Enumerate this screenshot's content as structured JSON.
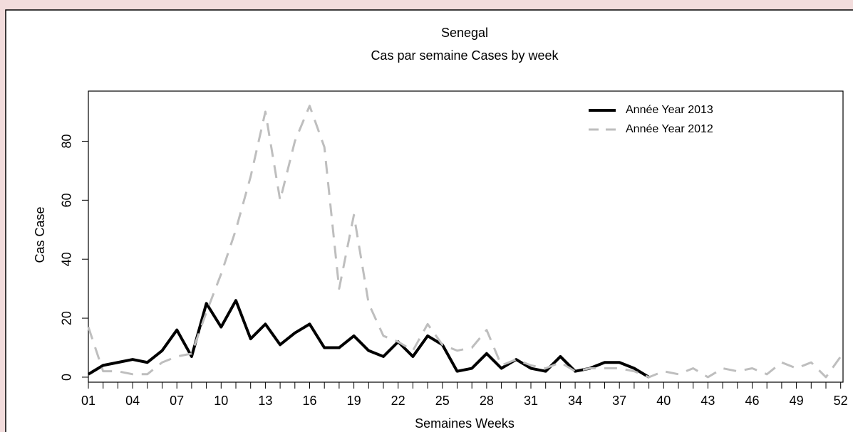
{
  "chart_data": {
    "type": "line",
    "title": "Senegal",
    "subtitle": "Cas par semaine Cases by week",
    "x_label": "Semaines Weeks",
    "y_label": "Cas Case",
    "categories": [
      "01",
      null,
      null,
      "04",
      null,
      null,
      "07",
      null,
      null,
      "10",
      null,
      null,
      "13",
      null,
      null,
      "16",
      null,
      null,
      "19",
      null,
      null,
      "22",
      null,
      null,
      "25",
      null,
      null,
      "28",
      null,
      null,
      "31",
      null,
      null,
      "34",
      null,
      null,
      "37",
      null,
      null,
      "40",
      null,
      null,
      "43",
      null,
      null,
      "46",
      null,
      null,
      "49",
      null,
      null,
      "52"
    ],
    "series": [
      {
        "name": "Année Year 2013",
        "color": "#000000",
        "dash": false,
        "values": [
          1,
          4,
          5,
          6,
          5,
          9,
          16,
          7,
          25,
          17,
          26,
          13,
          18,
          11,
          15,
          18,
          10,
          10,
          14,
          9,
          7,
          12,
          7,
          14,
          11,
          2,
          3,
          8,
          3,
          6,
          3,
          2,
          7,
          2,
          3,
          5,
          5,
          3,
          0,
          null,
          null,
          null,
          null,
          null,
          null,
          null,
          null,
          null,
          null,
          null,
          null,
          null
        ]
      },
      {
        "name": "Année Year 2012",
        "color": "#bebebe",
        "dash": true,
        "values": [
          17,
          2,
          2,
          1,
          1,
          5,
          7,
          8,
          22,
          35,
          50,
          68,
          90,
          60,
          80,
          92,
          78,
          30,
          55,
          25,
          14,
          12,
          9,
          18,
          11,
          9,
          10,
          16,
          4,
          6,
          4,
          3,
          5,
          2,
          3,
          3,
          3,
          2,
          0,
          2,
          1,
          3,
          0,
          3,
          2,
          3,
          1,
          5,
          3,
          5,
          0,
          7
        ]
      }
    ],
    "ylim": [
      -1.7,
      97
    ],
    "yticks": [
      0,
      20,
      40,
      60,
      80
    ],
    "legend": "top-right"
  }
}
